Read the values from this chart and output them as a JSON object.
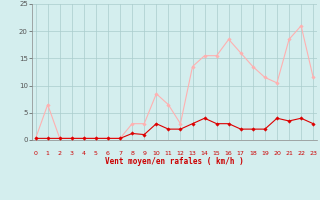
{
  "x": [
    0,
    1,
    2,
    3,
    4,
    5,
    6,
    7,
    8,
    9,
    10,
    11,
    12,
    13,
    14,
    15,
    16,
    17,
    18,
    19,
    20,
    21,
    22,
    23
  ],
  "avg_wind": [
    0.3,
    0.3,
    0.3,
    0.3,
    0.3,
    0.3,
    0.3,
    0.3,
    1.2,
    1.0,
    3.0,
    2.0,
    2.0,
    3.0,
    4.0,
    3.0,
    3.0,
    2.0,
    2.0,
    2.0,
    4.0,
    3.5,
    4.0,
    3.0
  ],
  "gust_wind": [
    0.3,
    6.5,
    0.3,
    0.3,
    0.3,
    0.3,
    0.3,
    0.3,
    3.0,
    3.0,
    8.5,
    6.5,
    3.0,
    13.5,
    15.5,
    15.5,
    18.5,
    16.0,
    13.5,
    11.5,
    10.5,
    18.5,
    21.0,
    11.5
  ],
  "avg_color": "#dd0000",
  "gust_color": "#ffb0b0",
  "bg_color": "#d4eeee",
  "grid_color": "#aacccc",
  "axis_color": "#888888",
  "xlabel": "Vent moyen/en rafales ( km/h )",
  "xlabel_color": "#cc0000",
  "tick_color": "#cc0000",
  "ytick_color": "#555555",
  "ylim": [
    0,
    25
  ],
  "yticks": [
    0,
    5,
    10,
    15,
    20,
    25
  ],
  "xlim": [
    -0.3,
    23.3
  ],
  "xticks": [
    0,
    1,
    2,
    3,
    4,
    5,
    6,
    7,
    8,
    9,
    10,
    11,
    12,
    13,
    14,
    15,
    16,
    17,
    18,
    19,
    20,
    21,
    22,
    23
  ]
}
